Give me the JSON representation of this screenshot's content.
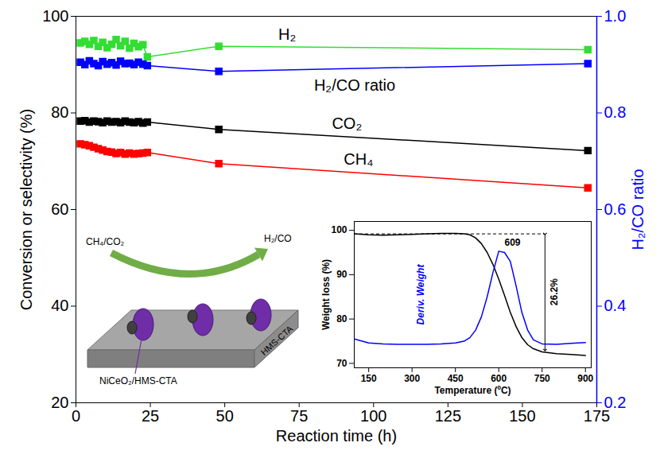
{
  "chart_data": [
    {
      "type": "line",
      "x_label": "Reaction time (h)",
      "y_label": "Conversion or selectivity (%)",
      "y2_label": "H₂/CO ratio",
      "x": [
        1.5,
        3,
        4.5,
        6,
        7.5,
        9,
        10.5,
        12,
        13.5,
        15,
        16.5,
        18,
        19.5,
        21,
        22.5,
        24,
        48,
        172
      ],
      "xlim": [
        0,
        175
      ],
      "xticks": [
        0,
        25,
        50,
        75,
        100,
        125,
        150,
        175
      ],
      "ylim": [
        20,
        100
      ],
      "yticks": [
        20,
        40,
        60,
        80,
        100
      ],
      "y2lim": [
        0.2,
        1.0
      ],
      "y2ticks": [
        0.2,
        0.4,
        0.6,
        0.8,
        {
          "value": 1.0,
          "label": "1.0"
        }
      ],
      "grid": false,
      "series": [
        {
          "name": "H₂",
          "color": "#33dd33",
          "marker": "square",
          "values": [
            94.5,
            94.8,
            94.2,
            95.0,
            93.8,
            94.6,
            93.5,
            94.2,
            95.2,
            93.9,
            94.8,
            93.4,
            94.4,
            93.7,
            94.1,
            91.6,
            93.8,
            93.1
          ]
        },
        {
          "name": "H₂/CO ratio",
          "color": "#0000ff",
          "marker": "square",
          "axis": "y2",
          "values": [
            0.905,
            0.9,
            0.908,
            0.902,
            0.898,
            0.906,
            0.901,
            0.904,
            0.899,
            0.907,
            0.902,
            0.903,
            0.9,
            0.905,
            0.901,
            0.898,
            0.886,
            0.902
          ]
        },
        {
          "name": "CO₂",
          "color": "#000000",
          "marker": "square",
          "values": [
            78.3,
            78.4,
            78.1,
            78.3,
            78.2,
            78.0,
            78.3,
            78.1,
            78.2,
            78.0,
            78.3,
            78.1,
            78.0,
            78.2,
            77.9,
            78.1,
            76.6,
            72.2
          ]
        },
        {
          "name": "CH₄",
          "color": "#ff0000",
          "marker": "square",
          "values": [
            73.6,
            73.4,
            73.2,
            72.9,
            72.6,
            72.3,
            72.0,
            71.9,
            71.6,
            71.8,
            71.5,
            71.7,
            71.5,
            71.6,
            71.7,
            71.8,
            69.5,
            64.5
          ]
        }
      ],
      "annotations": {
        "feed": "CH₄/CO₂",
        "product": "H₂/CO",
        "catalyst": "NiCeO₂/HMS-CTA",
        "support": "HMS-CTA"
      }
    },
    {
      "type": "line",
      "x_label": "Temperature (ºC)",
      "y_label": "Weight loss (%)",
      "x": [
        100,
        150,
        200,
        250,
        300,
        350,
        400,
        450,
        480,
        500,
        520,
        540,
        560,
        580,
        600,
        620,
        640,
        660,
        680,
        700,
        720,
        750,
        800,
        850,
        900
      ],
      "xlim": [
        100,
        920
      ],
      "xticks": [
        150,
        300,
        450,
        600,
        750,
        900
      ],
      "ylim": [
        69,
        102
      ],
      "yticks": [
        70,
        80,
        90,
        100
      ],
      "grid": false,
      "series": [
        {
          "color": "#000000",
          "values": [
            99.2,
            99.0,
            98.9,
            99.0,
            99.1,
            99.2,
            99.3,
            99.3,
            99.2,
            99.0,
            98.3,
            97.0,
            95.0,
            92.3,
            89.0,
            85.3,
            81.5,
            78.3,
            75.8,
            74.2,
            73.3,
            72.6,
            72.2,
            72.0,
            71.8
          ]
        },
        {
          "name": "Deriv. Weight",
          "color": "#0000ff",
          "values": [
            75.5,
            74.6,
            74.4,
            74.3,
            74.3,
            74.3,
            74.4,
            74.6,
            75.0,
            75.8,
            77.5,
            80.5,
            85.0,
            90.5,
            95.3,
            95.0,
            93.0,
            87.5,
            81.5,
            77.5,
            75.3,
            74.4,
            74.3,
            74.5,
            74.7
          ]
        }
      ],
      "annotations": [
        {
          "text": "609",
          "x": 609
        },
        {
          "text": "26.2%",
          "value": 26.2
        }
      ]
    }
  ]
}
